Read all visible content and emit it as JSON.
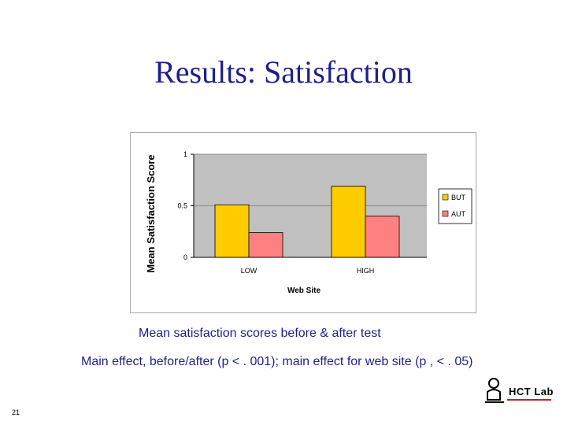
{
  "slide": {
    "title": "Results: Satisfaction",
    "caption_line1": "Mean satisfaction scores before & after test",
    "caption_line2": "Main effect, before/after (p < . 001); main effect for web site (p , < . 05)",
    "slide_number": "21",
    "logo_text": "HCT Lab",
    "colors": {
      "title": "#1f1f8a",
      "plot_background": "#c0c0c0",
      "gridline": "#8a8a8a"
    }
  },
  "chart_data": {
    "type": "bar",
    "title": "",
    "xlabel": "Web Site",
    "ylabel": "Mean Satisfaction Score",
    "ylim": [
      0,
      1
    ],
    "yticks": [
      0,
      0.5,
      1
    ],
    "ytick_labels": [
      "0",
      "0.5",
      "1"
    ],
    "grid": true,
    "legend_position": "right",
    "categories": [
      "LOW",
      "HIGH"
    ],
    "series": [
      {
        "name": "BUT",
        "color": "#ffcc00",
        "values": [
          0.51,
          0.69
        ]
      },
      {
        "name": "AUT",
        "color": "#ff8080",
        "values": [
          0.24,
          0.4
        ]
      }
    ]
  }
}
